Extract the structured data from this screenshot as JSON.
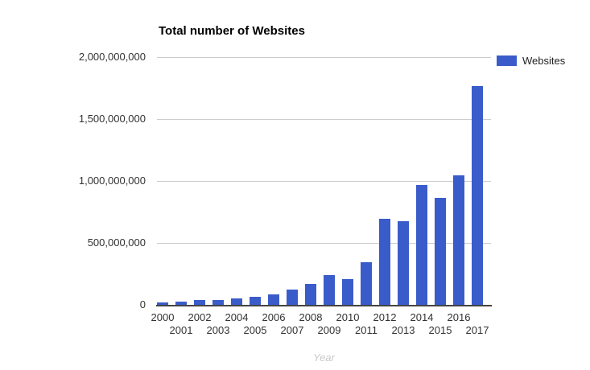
{
  "chart": {
    "title": "Total number of Websites",
    "x_axis_title": "Year",
    "legend_label": "Websites"
  },
  "chart_data": {
    "type": "bar",
    "title": "Total number of Websites",
    "xlabel": "Year",
    "ylabel": "",
    "categories": [
      "2000",
      "2001",
      "2002",
      "2003",
      "2004",
      "2005",
      "2006",
      "2007",
      "2008",
      "2009",
      "2010",
      "2011",
      "2012",
      "2013",
      "2014",
      "2015",
      "2016",
      "2017"
    ],
    "series": [
      {
        "name": "Websites",
        "color": "#3A5CCA",
        "values": [
          17000000,
          29000000,
          39000000,
          41000000,
          52000000,
          65000000,
          86000000,
          122000000,
          172000000,
          238000000,
          207000000,
          346000000,
          697000000,
          673000000,
          968000000,
          863000000,
          1045000000,
          1766000000
        ]
      }
    ],
    "ylim": [
      0,
      2000000000
    ],
    "y_ticks": [
      0,
      500000000,
      1000000000,
      1500000000,
      2000000000
    ],
    "y_tick_labels": [
      "0",
      "500,000,000",
      "1,000,000,000",
      "1,500,000,000",
      "2,000,000,000"
    ],
    "grid": true,
    "legend_position": "top-right",
    "x_labels_staggered": true,
    "colors": {
      "bar": "#3A5CCA",
      "gridline": "#cccccc",
      "axis_line": "#444444",
      "tick_label": "#333333",
      "axis_title_text": "#c9c9c9",
      "title_text": "#000000",
      "background": "#ffffff"
    }
  }
}
